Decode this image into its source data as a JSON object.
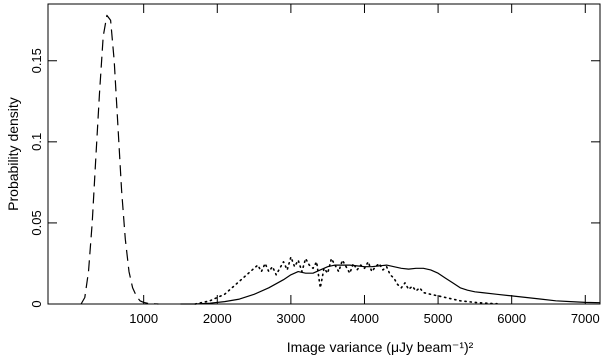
{
  "chart_data": {
    "type": "line",
    "title": "",
    "xlabel": "Image variance (μJy beam⁻¹)²",
    "ylabel": "Probability density",
    "xlim": [
      -300,
      7200
    ],
    "ylim": [
      0,
      0.185
    ],
    "x_ticks": [
      1000,
      2000,
      3000,
      4000,
      5000,
      6000,
      7000
    ],
    "x_tick_labels": [
      "1000",
      "2000",
      "3000",
      "4000",
      "5000",
      "6000",
      "7000"
    ],
    "y_ticks": [
      0,
      0.05,
      0.1,
      0.15
    ],
    "y_tick_labels": [
      "0",
      "0.05",
      "0.1",
      "0.15"
    ],
    "grid": false,
    "legend": "none",
    "series": [
      {
        "style": "dashed",
        "x": [
          150,
          200,
          250,
          300,
          350,
          400,
          450,
          500,
          550,
          600,
          650,
          700,
          750,
          800,
          850,
          900,
          950,
          1000,
          1050,
          1100,
          1150,
          1200
        ],
        "y": [
          0.0,
          0.004,
          0.02,
          0.05,
          0.09,
          0.13,
          0.165,
          0.178,
          0.175,
          0.15,
          0.11,
          0.07,
          0.04,
          0.02,
          0.01,
          0.005,
          0.002,
          0.001,
          0.0005,
          0.0002,
          0.0001,
          0.0
        ]
      },
      {
        "style": "solid",
        "x": [
          1500,
          1700,
          1900,
          2100,
          2300,
          2500,
          2700,
          2900,
          3000,
          3100,
          3200,
          3300,
          3400,
          3500,
          3600,
          3700,
          3800,
          3900,
          4000,
          4100,
          4200,
          4300,
          4400,
          4500,
          4600,
          4700,
          4800,
          4900,
          5000,
          5100,
          5200,
          5300,
          5400,
          5500,
          5600,
          5800,
          6000,
          6200,
          6400,
          6600,
          6800,
          7000,
          7200
        ],
        "y": [
          0.0,
          0.0,
          0.0005,
          0.0015,
          0.003,
          0.006,
          0.01,
          0.015,
          0.018,
          0.02,
          0.019,
          0.019,
          0.021,
          0.023,
          0.024,
          0.024,
          0.024,
          0.0235,
          0.023,
          0.023,
          0.0235,
          0.024,
          0.023,
          0.022,
          0.0215,
          0.022,
          0.022,
          0.021,
          0.019,
          0.016,
          0.013,
          0.01,
          0.0085,
          0.0075,
          0.007,
          0.006,
          0.005,
          0.004,
          0.003,
          0.002,
          0.0015,
          0.001,
          0.0008
        ]
      },
      {
        "style": "dotted",
        "x": [
          1700,
          1800,
          1900,
          2000,
          2100,
          2200,
          2300,
          2400,
          2500,
          2550,
          2600,
          2650,
          2700,
          2750,
          2800,
          2850,
          2900,
          2950,
          3000,
          3050,
          3100,
          3150,
          3200,
          3250,
          3300,
          3350,
          3400,
          3450,
          3500,
          3550,
          3600,
          3650,
          3700,
          3750,
          3800,
          3850,
          3900,
          3950,
          4000,
          4050,
          4100,
          4150,
          4200,
          4250,
          4300,
          4350,
          4400,
          4450,
          4500,
          4550,
          4600,
          4650,
          4700,
          4750,
          4800,
          4900,
          5000,
          5100,
          5200,
          5300,
          5400,
          5500,
          5600,
          5700,
          5800
        ],
        "y": [
          0.0,
          0.001,
          0.002,
          0.004,
          0.006,
          0.01,
          0.014,
          0.018,
          0.022,
          0.024,
          0.02,
          0.025,
          0.02,
          0.023,
          0.018,
          0.022,
          0.026,
          0.021,
          0.029,
          0.023,
          0.027,
          0.02,
          0.028,
          0.024,
          0.022,
          0.026,
          0.01,
          0.022,
          0.019,
          0.028,
          0.024,
          0.02,
          0.027,
          0.023,
          0.019,
          0.025,
          0.021,
          0.024,
          0.022,
          0.026,
          0.02,
          0.023,
          0.025,
          0.021,
          0.023,
          0.018,
          0.016,
          0.012,
          0.01,
          0.013,
          0.009,
          0.011,
          0.008,
          0.01,
          0.007,
          0.006,
          0.005,
          0.004,
          0.003,
          0.002,
          0.0015,
          0.001,
          0.0007,
          0.0004,
          0.0002
        ]
      }
    ]
  }
}
